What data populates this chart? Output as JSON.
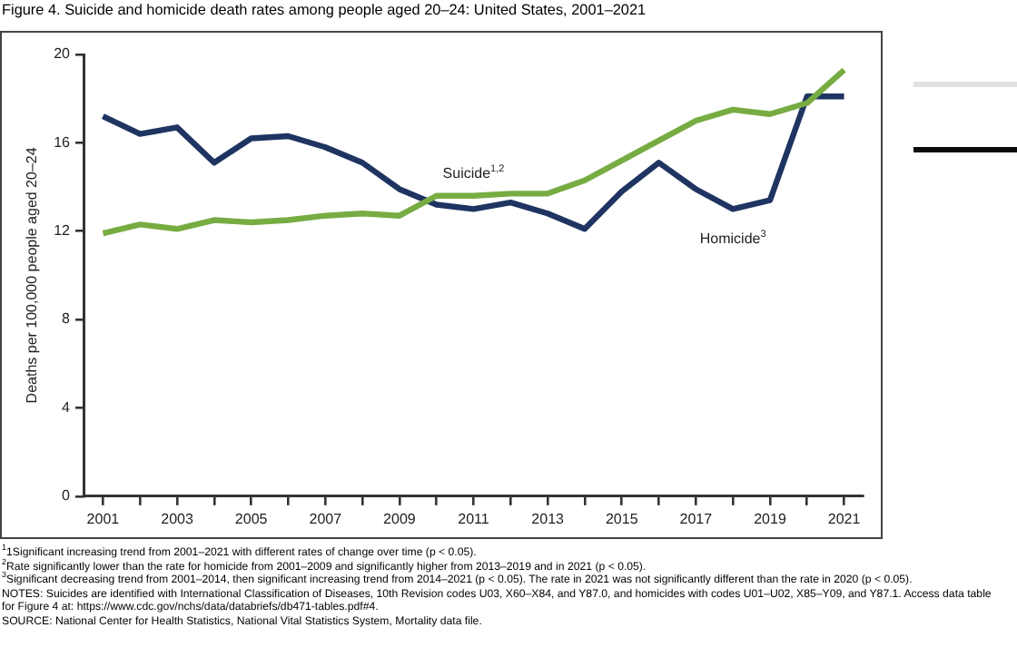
{
  "chart_data": {
    "type": "line",
    "title": "Figure 4. Suicide and homicide death rates among people aged 20–24: United States, 2001–2021",
    "ylabel": "Deaths per 100,000 people aged 20–24",
    "x": [
      2001,
      2002,
      2003,
      2004,
      2005,
      2006,
      2007,
      2008,
      2009,
      2010,
      2011,
      2012,
      2013,
      2014,
      2015,
      2016,
      2017,
      2018,
      2019,
      2020,
      2021
    ],
    "series": [
      {
        "name": "Suicide$^{1,2}$",
        "color": "#77ac43",
        "values": [
          11.9,
          12.3,
          12.1,
          12.5,
          12.4,
          12.5,
          12.7,
          12.8,
          12.7,
          13.6,
          13.6,
          13.7,
          13.7,
          14.3,
          15.2,
          16.1,
          17.0,
          17.5,
          17.3,
          17.8,
          19.3
        ]
      },
      {
        "name": "Homicide$^{3}$",
        "color": "#1f3461",
        "values": [
          17.2,
          16.4,
          16.7,
          15.1,
          16.2,
          16.3,
          15.8,
          15.1,
          13.9,
          13.2,
          13.0,
          13.3,
          12.8,
          12.1,
          13.8,
          15.1,
          13.9,
          13.0,
          13.4,
          18.1,
          18.1
        ]
      }
    ],
    "xlim": [
      2000.5,
      2021.5
    ],
    "xticks": [
      2001,
      {
        "value": 2002,
        "label": null
      },
      2003,
      {
        "value": 2004,
        "label": null
      },
      2005,
      {
        "value": 2006,
        "label": null
      },
      2007,
      {
        "value": 2008,
        "label": null
      },
      2009,
      {
        "value": 2010,
        "label": null
      },
      2011,
      {
        "value": 2012,
        "label": null
      },
      2013,
      {
        "value": 2014,
        "label": null
      },
      2015,
      {
        "value": 2016,
        "label": null
      },
      2017,
      {
        "value": 2018,
        "label": null
      },
      2019,
      {
        "value": 2020,
        "label": null
      },
      2021
    ],
    "ylim": [
      0,
      20
    ],
    "yticks": [
      0,
      4,
      8,
      12,
      16,
      20
    ],
    "grid": false,
    "legend": false,
    "marker": "none",
    "line_style": "solid",
    "annotations": [
      "$^{1}$1Significant increasing trend from 2001–2021 with different rates of change over time (p < 0.05).",
      "$^{2}$Rate significantly lower than the rate for homicide from 2001–2009 and significantly higher from 2013–2019 and in 2021 (p < 0.05).",
      "$^{3}$Significant decreasing trend from 2001–2014, then significant increasing trend from 2014–2021 (p < 0.05). The rate in 2021 was not significantly different than the rate in 2020 (p < 0.05).",
      "NOTES: Suicides are identified with International Classification of Diseases, 10th Revision codes U03, X60–X84, and Y87.0, and homicides with codes U01–U02, X85–Y09, and Y87.1. Access data table for Figure 4 at: https://www.cdc.gov/nchs/data/databriefs/db471-tables.pdf#4.",
      "SOURCE: National Center for Health Statistics, National Vital Statistics System, Mortality data file."
    ]
  }
}
